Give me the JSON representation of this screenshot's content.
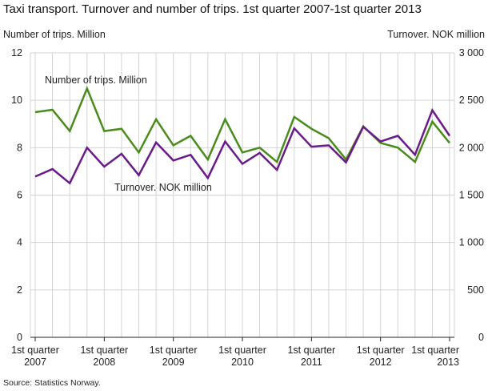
{
  "chart_data": {
    "type": "line",
    "title": "Taxi transport. Turnover and number of trips. 1st quarter 2007-1st quarter 2013",
    "ylabel_left": "Number of trips. Million",
    "ylabel_right": "Turnover. NOK million",
    "source": "Source: Statistics Norway.",
    "x": [
      "2007Q1",
      "2007Q2",
      "2007Q3",
      "2007Q4",
      "2008Q1",
      "2008Q2",
      "2008Q3",
      "2008Q4",
      "2009Q1",
      "2009Q2",
      "2009Q3",
      "2009Q4",
      "2010Q1",
      "2010Q2",
      "2010Q3",
      "2010Q4",
      "2011Q1",
      "2011Q2",
      "2011Q3",
      "2011Q4",
      "2012Q1",
      "2012Q2",
      "2012Q3",
      "2012Q4",
      "2013Q1"
    ],
    "x_tick_labels": [
      {
        "index": 0,
        "line1": "1st quarter",
        "line2": "2007"
      },
      {
        "index": 4,
        "line1": "1st quarter",
        "line2": "2008"
      },
      {
        "index": 8,
        "line1": "1st quarter",
        "line2": "2009"
      },
      {
        "index": 12,
        "line1": "1st quarter",
        "line2": "2010"
      },
      {
        "index": 16,
        "line1": "1st quarter",
        "line2": "2011"
      },
      {
        "index": 20,
        "line1": "1st quarter",
        "line2": "2012"
      },
      {
        "index": 24,
        "line1": "1st quarter",
        "line2": "2013"
      }
    ],
    "y_left": {
      "min": 0,
      "max": 12,
      "ticks": [
        0,
        2,
        4,
        6,
        8,
        10,
        12
      ],
      "tick_labels": [
        "0",
        "2",
        "4",
        "6",
        "8",
        "10",
        "12"
      ]
    },
    "y_right": {
      "min": 0,
      "max": 3000,
      "ticks": [
        0,
        500,
        1000,
        1500,
        2000,
        2500,
        3000
      ],
      "tick_labels": [
        "0",
        "500",
        "1 000",
        "1 500",
        "2 000",
        "2 500",
        "3 000"
      ]
    },
    "grid": true,
    "series": [
      {
        "name": "Number of trips. Million",
        "axis": "left",
        "color": "#4a8c1c",
        "values": [
          9.5,
          9.6,
          8.7,
          10.5,
          8.7,
          8.8,
          7.8,
          9.2,
          8.1,
          8.5,
          7.5,
          9.2,
          7.8,
          8.0,
          7.4,
          9.3,
          8.8,
          8.4,
          7.5,
          8.9,
          8.2,
          8.0,
          7.4,
          9.1,
          8.2
        ]
      },
      {
        "name": "Turnover. NOK million",
        "axis": "right",
        "color": "#6a1b8a",
        "values": [
          1695,
          1775,
          1625,
          2000,
          1800,
          1935,
          1710,
          2055,
          1865,
          1925,
          1680,
          2065,
          1830,
          1945,
          1765,
          2205,
          2010,
          2025,
          1845,
          2220,
          2065,
          2125,
          1925,
          2395,
          2125
        ]
      }
    ],
    "annotations": [
      {
        "text": "Number of trips. Million",
        "series": 0
      },
      {
        "text": "Turnover. NOK million",
        "series": 1
      }
    ]
  }
}
